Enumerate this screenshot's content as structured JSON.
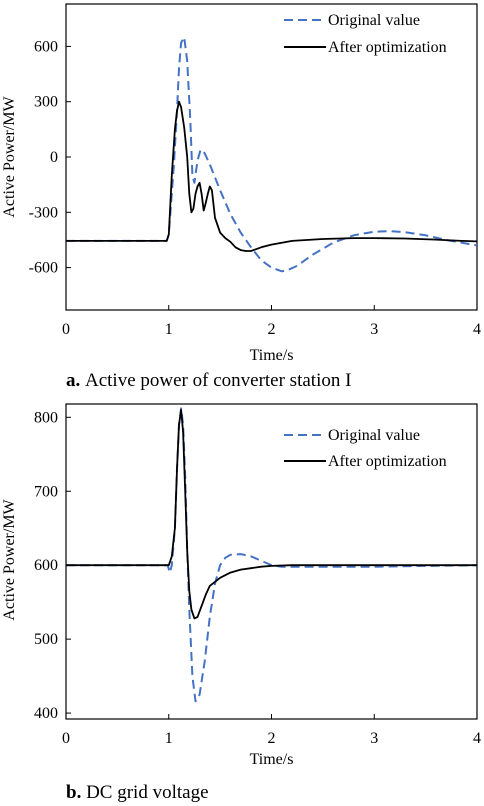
{
  "chart_data": [
    {
      "type": "line",
      "caption_letter": "a.",
      "caption_text": "Active power of converter station I",
      "xlabel": "Time/s",
      "ylabel": "Active Power/MW",
      "xlim": [
        0,
        4
      ],
      "ylim": [
        -830,
        830
      ],
      "xticks": [
        0,
        1,
        2,
        3,
        4
      ],
      "yticks": [
        -600,
        -300,
        0,
        300,
        600
      ],
      "legend_position": "top-right",
      "grid": false,
      "series": [
        {
          "name": "Original value",
          "color": "#4472c4",
          "style": "dashed",
          "x": [
            0,
            0.5,
            0.98,
            1.0,
            1.05,
            1.08,
            1.1,
            1.12,
            1.15,
            1.18,
            1.21,
            1.23,
            1.25,
            1.28,
            1.31,
            1.35,
            1.4,
            1.5,
            1.6,
            1.7,
            1.8,
            1.9,
            2.0,
            2.1,
            2.15,
            2.25,
            2.4,
            2.6,
            2.8,
            3.0,
            3.15,
            3.3,
            3.5,
            3.7,
            3.85,
            4.0
          ],
          "y": [
            -455,
            -455,
            -455,
            -420,
            -40,
            250,
            480,
            620,
            650,
            520,
            200,
            -100,
            -140,
            -20,
            40,
            20,
            -40,
            -180,
            -310,
            -410,
            -490,
            -560,
            -600,
            -620,
            -615,
            -590,
            -530,
            -465,
            -425,
            -405,
            -402,
            -408,
            -425,
            -450,
            -465,
            -480
          ]
        },
        {
          "name": "After optimization",
          "color": "#000000",
          "style": "solid",
          "x": [
            0,
            0.5,
            0.98,
            1.0,
            1.03,
            1.06,
            1.08,
            1.1,
            1.12,
            1.15,
            1.18,
            1.2,
            1.22,
            1.24,
            1.26,
            1.28,
            1.3,
            1.32,
            1.34,
            1.36,
            1.38,
            1.4,
            1.42,
            1.45,
            1.5,
            1.55,
            1.6,
            1.65,
            1.7,
            1.75,
            1.8,
            1.85,
            1.9,
            2.0,
            2.2,
            2.5,
            2.8,
            3.0,
            3.3,
            3.6,
            3.85,
            4.0
          ],
          "y": [
            -455,
            -455,
            -455,
            -420,
            -100,
            150,
            250,
            300,
            270,
            160,
            0,
            -200,
            -300,
            -280,
            -200,
            -160,
            -140,
            -200,
            -290,
            -250,
            -200,
            -160,
            -180,
            -330,
            -410,
            -440,
            -460,
            -490,
            -505,
            -510,
            -510,
            -500,
            -490,
            -475,
            -455,
            -445,
            -440,
            -440,
            -442,
            -448,
            -455,
            -458
          ]
        }
      ]
    },
    {
      "type": "line",
      "caption_letter": "b.",
      "caption_text": "DC grid voltage",
      "xlabel": "Time/s",
      "ylabel": "Active Power/MW",
      "xlim": [
        0,
        4
      ],
      "ylim": [
        392,
        818
      ],
      "xticks": [
        0,
        1,
        2,
        3,
        4
      ],
      "yticks": [
        400,
        500,
        600,
        700,
        800
      ],
      "legend_position": "top-right",
      "grid": false,
      "series": [
        {
          "name": "Original value",
          "color": "#4472c4",
          "style": "dashed",
          "x": [
            0,
            0.5,
            0.99,
            1.01,
            1.03,
            1.06,
            1.08,
            1.1,
            1.12,
            1.14,
            1.16,
            1.18,
            1.2,
            1.23,
            1.26,
            1.3,
            1.35,
            1.4,
            1.45,
            1.5,
            1.55,
            1.6,
            1.7,
            1.8,
            1.9,
            2.0,
            2.1,
            2.2,
            2.5,
            3.0,
            3.5,
            4.0
          ],
          "y": [
            600,
            600,
            600,
            590,
            600,
            650,
            730,
            790,
            812,
            790,
            720,
            620,
            540,
            450,
            416,
            425,
            470,
            530,
            575,
            600,
            610,
            614,
            615,
            612,
            606,
            600,
            598,
            598,
            598,
            598,
            599,
            600
          ]
        },
        {
          "name": "After optimization",
          "color": "#000000",
          "style": "solid",
          "x": [
            0,
            0.5,
            1.0,
            1.03,
            1.06,
            1.08,
            1.1,
            1.12,
            1.14,
            1.16,
            1.18,
            1.2,
            1.22,
            1.25,
            1.28,
            1.32,
            1.36,
            1.4,
            1.5,
            1.6,
            1.7,
            1.8,
            1.9,
            2.0,
            2.2,
            2.5,
            3.0,
            3.5,
            4.0
          ],
          "y": [
            600,
            600,
            600,
            612,
            650,
            730,
            790,
            810,
            780,
            700,
            620,
            565,
            540,
            528,
            530,
            545,
            560,
            572,
            583,
            590,
            594,
            596,
            598,
            599,
            600,
            600,
            600,
            600,
            600
          ]
        }
      ]
    }
  ]
}
